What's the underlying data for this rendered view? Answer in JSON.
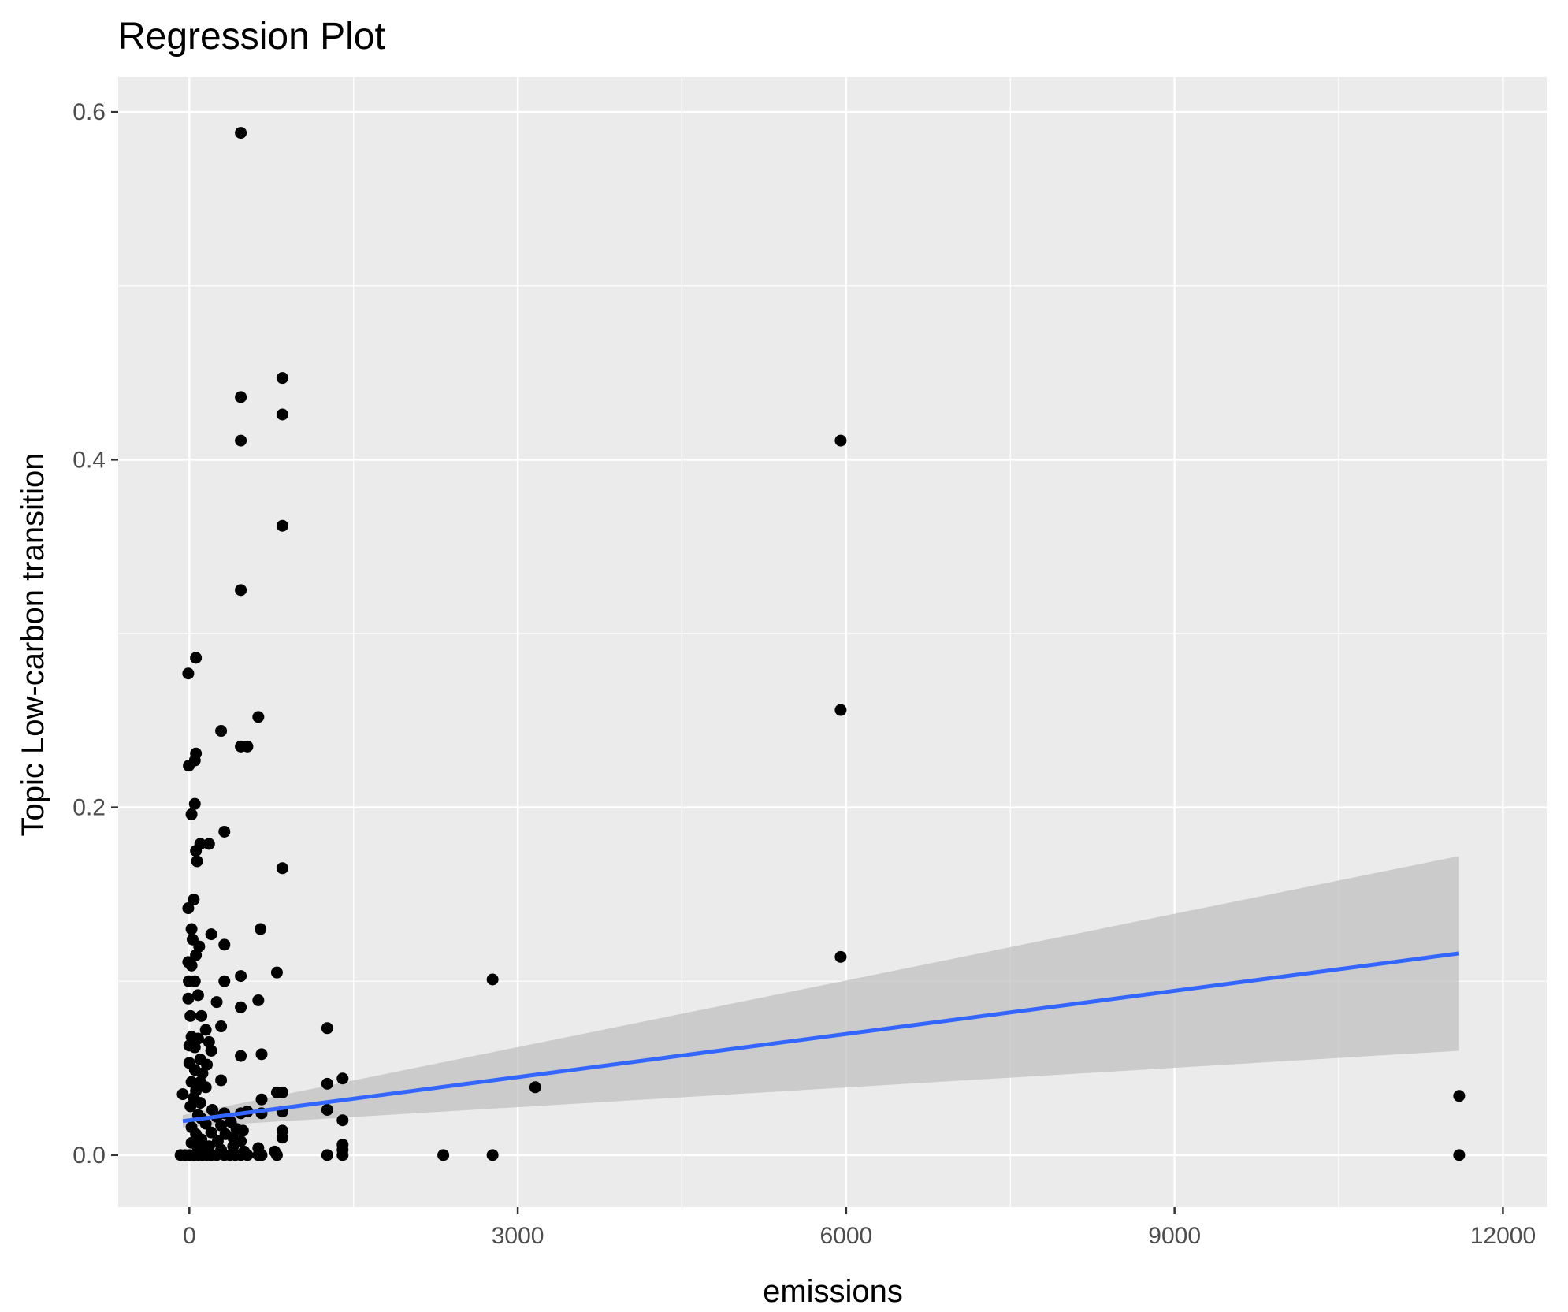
{
  "chart_data": {
    "type": "scatter",
    "title": "Regression Plot",
    "xlabel": "emissions",
    "ylabel": "Topic Low-carbon transition",
    "xlim": [
      -650,
      12400
    ],
    "ylim": [
      -0.03,
      0.62
    ],
    "x_ticks": [
      0,
      3000,
      6000,
      9000,
      12000
    ],
    "x_tick_labels": [
      "0",
      "3000",
      "6000",
      "9000",
      "12000"
    ],
    "y_ticks": [
      0.0,
      0.2,
      0.4,
      0.6
    ],
    "y_tick_labels": [
      "0.0",
      "0.2",
      "0.4",
      "0.6"
    ],
    "grid": true,
    "legend": "none",
    "colors": {
      "panel": "#ebebeb",
      "grid": "#ffffff",
      "points": "#000000",
      "regression_line": "#3366ff",
      "confidence_band": "#bdbdbd"
    },
    "regression": {
      "method": "lm",
      "x": [
        -60,
        11600
      ],
      "y": [
        0.0195,
        0.116
      ],
      "ci_lower": [
        0.016,
        0.06
      ],
      "ci_upper": [
        0.023,
        0.172
      ]
    },
    "points": [
      {
        "x": 470,
        "y": 0.588
      },
      {
        "x": 850,
        "y": 0.447
      },
      {
        "x": 470,
        "y": 0.436
      },
      {
        "x": 850,
        "y": 0.426
      },
      {
        "x": 470,
        "y": 0.411
      },
      {
        "x": 5950,
        "y": 0.411
      },
      {
        "x": 850,
        "y": 0.362
      },
      {
        "x": 470,
        "y": 0.325
      },
      {
        "x": 60,
        "y": 0.286
      },
      {
        "x": -10,
        "y": 0.277
      },
      {
        "x": 630,
        "y": 0.252
      },
      {
        "x": 5950,
        "y": 0.256
      },
      {
        "x": 290,
        "y": 0.244
      },
      {
        "x": 470,
        "y": 0.235
      },
      {
        "x": 530,
        "y": 0.235
      },
      {
        "x": 60,
        "y": 0.231
      },
      {
        "x": 50,
        "y": 0.227
      },
      {
        "x": -5,
        "y": 0.224
      },
      {
        "x": 50,
        "y": 0.202
      },
      {
        "x": 20,
        "y": 0.196
      },
      {
        "x": 320,
        "y": 0.186
      },
      {
        "x": 100,
        "y": 0.179
      },
      {
        "x": 180,
        "y": 0.179
      },
      {
        "x": 60,
        "y": 0.175
      },
      {
        "x": 70,
        "y": 0.169
      },
      {
        "x": 850,
        "y": 0.165
      },
      {
        "x": 40,
        "y": 0.147
      },
      {
        "x": -10,
        "y": 0.142
      },
      {
        "x": 650,
        "y": 0.13
      },
      {
        "x": 20,
        "y": 0.13
      },
      {
        "x": 200,
        "y": 0.127
      },
      {
        "x": 30,
        "y": 0.124
      },
      {
        "x": 90,
        "y": 0.12
      },
      {
        "x": 320,
        "y": 0.121
      },
      {
        "x": 60,
        "y": 0.115
      },
      {
        "x": -10,
        "y": 0.111
      },
      {
        "x": 5950,
        "y": 0.114
      },
      {
        "x": 20,
        "y": 0.109
      },
      {
        "x": 800,
        "y": 0.105
      },
      {
        "x": 470,
        "y": 0.103
      },
      {
        "x": 2770,
        "y": 0.101
      },
      {
        "x": -5,
        "y": 0.1
      },
      {
        "x": 50,
        "y": 0.1
      },
      {
        "x": 320,
        "y": 0.1
      },
      {
        "x": 80,
        "y": 0.092
      },
      {
        "x": -10,
        "y": 0.09
      },
      {
        "x": 630,
        "y": 0.089
      },
      {
        "x": 250,
        "y": 0.088
      },
      {
        "x": 470,
        "y": 0.085
      },
      {
        "x": 10,
        "y": 0.08
      },
      {
        "x": 110,
        "y": 0.08
      },
      {
        "x": 150,
        "y": 0.072
      },
      {
        "x": 290,
        "y": 0.074
      },
      {
        "x": 1260,
        "y": 0.073
      },
      {
        "x": 20,
        "y": 0.068
      },
      {
        "x": 80,
        "y": 0.067
      },
      {
        "x": 180,
        "y": 0.065
      },
      {
        "x": 0,
        "y": 0.063
      },
      {
        "x": 50,
        "y": 0.062
      },
      {
        "x": 200,
        "y": 0.06
      },
      {
        "x": 660,
        "y": 0.058
      },
      {
        "x": 470,
        "y": 0.057
      },
      {
        "x": 100,
        "y": 0.055
      },
      {
        "x": 0,
        "y": 0.053
      },
      {
        "x": 160,
        "y": 0.052
      },
      {
        "x": 50,
        "y": 0.049
      },
      {
        "x": 120,
        "y": 0.047
      },
      {
        "x": 1400,
        "y": 0.044
      },
      {
        "x": 290,
        "y": 0.043
      },
      {
        "x": 20,
        "y": 0.042
      },
      {
        "x": 100,
        "y": 0.042
      },
      {
        "x": 1260,
        "y": 0.041
      },
      {
        "x": 3160,
        "y": 0.039
      },
      {
        "x": 150,
        "y": 0.039
      },
      {
        "x": 60,
        "y": 0.037
      },
      {
        "x": -60,
        "y": 0.035
      },
      {
        "x": 800,
        "y": 0.036
      },
      {
        "x": 850,
        "y": 0.036
      },
      {
        "x": 11600,
        "y": 0.034
      },
      {
        "x": 40,
        "y": 0.033
      },
      {
        "x": 660,
        "y": 0.032
      },
      {
        "x": 100,
        "y": 0.03
      },
      {
        "x": 10,
        "y": 0.028
      },
      {
        "x": 1260,
        "y": 0.026
      },
      {
        "x": 210,
        "y": 0.026
      },
      {
        "x": 530,
        "y": 0.025
      },
      {
        "x": 470,
        "y": 0.024
      },
      {
        "x": 850,
        "y": 0.025
      },
      {
        "x": 320,
        "y": 0.024
      },
      {
        "x": 660,
        "y": 0.024
      },
      {
        "x": 80,
        "y": 0.023
      },
      {
        "x": 250,
        "y": 0.022
      },
      {
        "x": 110,
        "y": 0.021
      },
      {
        "x": 1400,
        "y": 0.02
      },
      {
        "x": 380,
        "y": 0.019
      },
      {
        "x": 150,
        "y": 0.018
      },
      {
        "x": 290,
        "y": 0.017
      },
      {
        "x": 20,
        "y": 0.016
      },
      {
        "x": 430,
        "y": 0.015
      },
      {
        "x": 850,
        "y": 0.014
      },
      {
        "x": 490,
        "y": 0.014
      },
      {
        "x": 200,
        "y": 0.013
      },
      {
        "x": 60,
        "y": 0.012
      },
      {
        "x": 330,
        "y": 0.012
      },
      {
        "x": 850,
        "y": 0.01
      },
      {
        "x": 400,
        "y": 0.01
      },
      {
        "x": 110,
        "y": 0.009
      },
      {
        "x": 470,
        "y": 0.008
      },
      {
        "x": 260,
        "y": 0.008
      },
      {
        "x": 20,
        "y": 0.007
      },
      {
        "x": 1400,
        "y": 0.006
      },
      {
        "x": 180,
        "y": 0.005
      },
      {
        "x": 400,
        "y": 0.005
      },
      {
        "x": 80,
        "y": 0.004
      },
      {
        "x": 630,
        "y": 0.004
      },
      {
        "x": 1400,
        "y": 0.003
      },
      {
        "x": 290,
        "y": 0.003
      },
      {
        "x": 500,
        "y": 0.002
      },
      {
        "x": 780,
        "y": 0.002
      },
      {
        "x": 130,
        "y": 0.002
      },
      {
        "x": -80,
        "y": 0.0
      },
      {
        "x": -40,
        "y": 0.0
      },
      {
        "x": 0,
        "y": 0.0
      },
      {
        "x": 40,
        "y": 0.0
      },
      {
        "x": 80,
        "y": 0.0
      },
      {
        "x": 120,
        "y": 0.0
      },
      {
        "x": 160,
        "y": 0.0
      },
      {
        "x": 200,
        "y": 0.0
      },
      {
        "x": 250,
        "y": 0.0
      },
      {
        "x": 320,
        "y": 0.0
      },
      {
        "x": 370,
        "y": 0.0
      },
      {
        "x": 420,
        "y": 0.0
      },
      {
        "x": 470,
        "y": 0.0
      },
      {
        "x": 530,
        "y": 0.0
      },
      {
        "x": 630,
        "y": 0.0
      },
      {
        "x": 660,
        "y": 0.0
      },
      {
        "x": 800,
        "y": 0.0
      },
      {
        "x": 1260,
        "y": 0.0
      },
      {
        "x": 1400,
        "y": 0.0
      },
      {
        "x": 2320,
        "y": 0.0
      },
      {
        "x": 2770,
        "y": 0.0
      },
      {
        "x": 11600,
        "y": 0.0
      }
    ]
  }
}
